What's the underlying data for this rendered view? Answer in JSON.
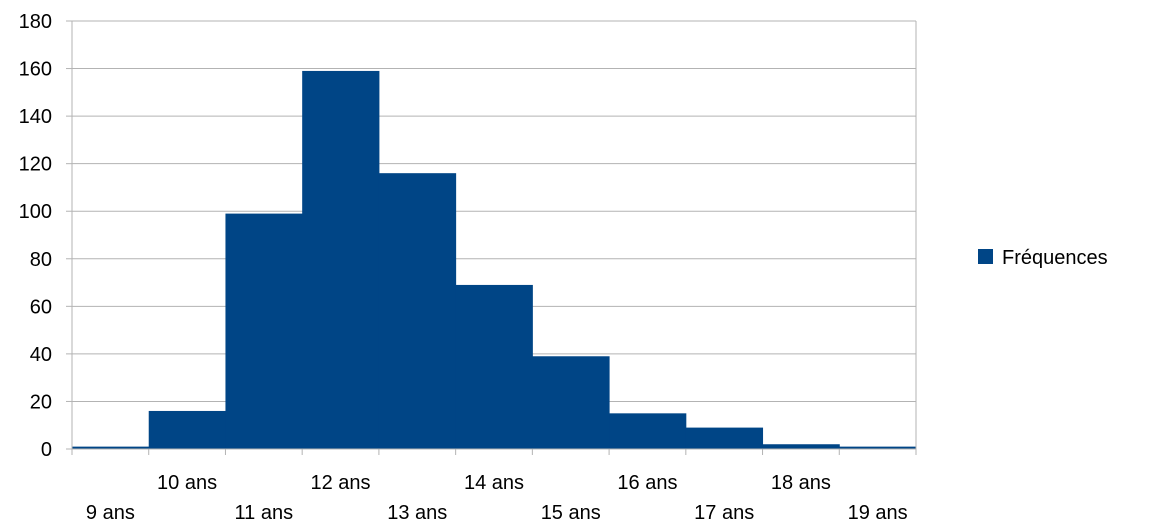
{
  "chart_data": {
    "type": "bar",
    "categories": [
      "9 ans",
      "10 ans",
      "11 ans",
      "12 ans",
      "13 ans",
      "14 ans",
      "15 ans",
      "16 ans",
      "17 ans",
      "18 ans",
      "19 ans"
    ],
    "series": [
      {
        "name": "Fréquences",
        "values": [
          1,
          16,
          99,
          159,
          116,
          69,
          39,
          15,
          9,
          2,
          1
        ],
        "color": "#004586"
      }
    ],
    "ylim": [
      0,
      180
    ],
    "yticks": [
      0,
      20,
      40,
      60,
      80,
      100,
      120,
      140,
      160,
      180
    ],
    "grid": true,
    "legend": "right",
    "title": "",
    "xlabel": "",
    "ylabel": ""
  }
}
